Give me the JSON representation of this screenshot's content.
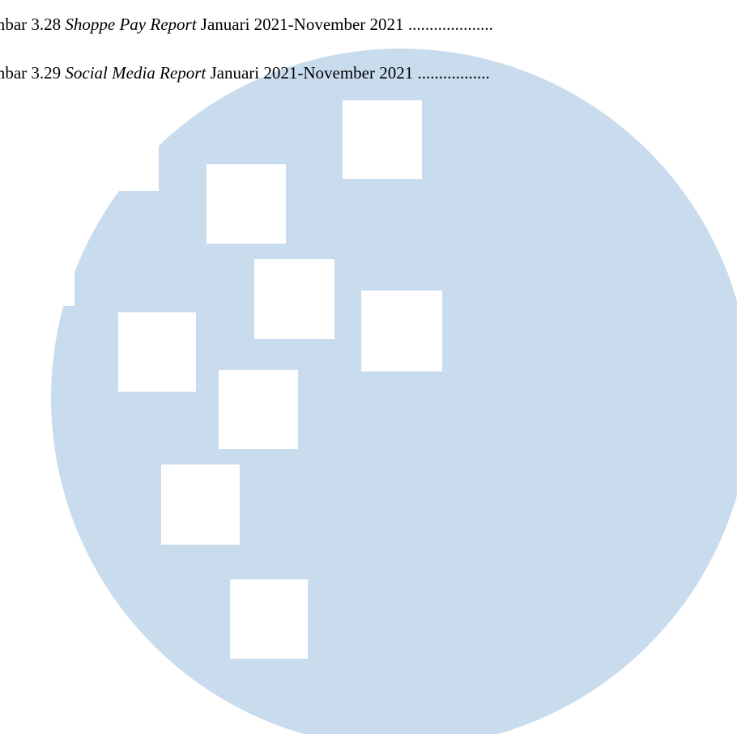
{
  "toc": {
    "entries": [
      {
        "prefix": "mbar 3.28 ",
        "italic": "Shoppe Pay Report",
        "rest": " Januari 2021-November 2021 ",
        "leader": "...................."
      },
      {
        "prefix": "mbar 3.29 ",
        "italic": "Social Media Report",
        "rest": " Januari 2021-November 2021 ",
        "leader": "................."
      }
    ]
  },
  "watermark": {
    "type": "university-logo-watermark",
    "circle_color": "#c9dcee",
    "square_color": "#ffffff"
  }
}
